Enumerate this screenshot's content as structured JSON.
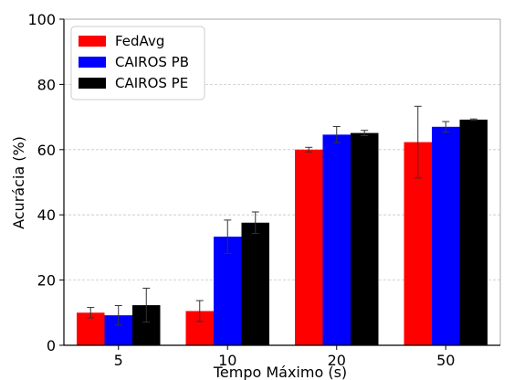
{
  "chart_data": {
    "type": "bar",
    "title": "",
    "xlabel": "Tempo Máximo (s)",
    "ylabel": "Acurácia (%)",
    "categories": [
      "5",
      "10",
      "20",
      "50"
    ],
    "ylim": [
      0,
      100
    ],
    "yticks": [
      0,
      20,
      40,
      60,
      80,
      100
    ],
    "grid": true,
    "legend_position": "top-left",
    "series": [
      {
        "name": "FedAvg",
        "color": "#ff0000",
        "values": [
          10.0,
          10.5,
          60.0,
          62.3
        ],
        "errors": [
          1.6,
          3.2,
          0.7,
          11.0
        ]
      },
      {
        "name": "CAIROS PB",
        "color": "#0000ff",
        "values": [
          9.2,
          33.3,
          64.6,
          67.0
        ],
        "errors": [
          3.0,
          5.1,
          2.5,
          1.6
        ]
      },
      {
        "name": "CAIROS PE",
        "color": "#000000",
        "values": [
          12.3,
          37.6,
          65.1,
          69.2
        ],
        "errors": [
          5.2,
          3.3,
          0.8,
          0.2
        ]
      }
    ]
  }
}
